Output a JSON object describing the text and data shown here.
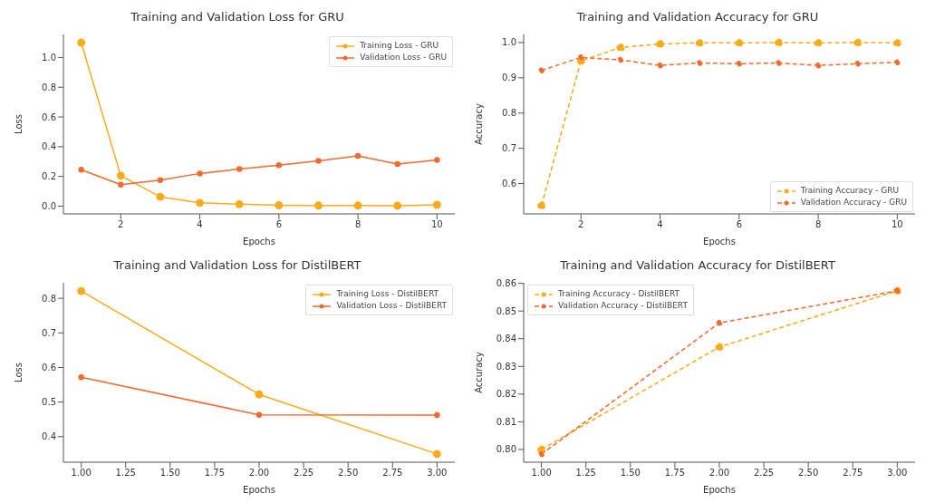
{
  "chart_data": [
    {
      "type": "line",
      "title": "Training and Validation Loss for GRU",
      "xlabel": "Epochs",
      "ylabel": "Loss",
      "x": [
        1,
        2,
        3,
        4,
        5,
        6,
        7,
        8,
        9,
        10
      ],
      "xlim": [
        0.55,
        10.45
      ],
      "xticks": [
        2,
        4,
        6,
        8,
        10
      ],
      "ylim": [
        -0.052,
        1.155
      ],
      "yticks": [
        {
          "value": 0,
          "label": "0.0"
        },
        0.2,
        0.4,
        0.6,
        0.8,
        {
          "value": 1,
          "label": "1.0"
        }
      ],
      "marker": "circle",
      "line_style": "solid",
      "grid": false,
      "legend": "top right",
      "series": [
        {
          "name": "Training Loss - GRU",
          "color": "#fbaa19",
          "values": [
            1.1,
            0.205,
            0.063,
            0.022,
            0.013,
            0.006,
            0.004,
            0.004,
            0.003,
            0.009
          ]
        },
        {
          "name": "Validation Loss - GRU",
          "color": "#f4692e",
          "values": [
            0.245,
            0.145,
            0.175,
            0.22,
            0.25,
            0.275,
            0.305,
            0.338,
            0.283,
            0.31
          ]
        }
      ]
    },
    {
      "type": "line",
      "title": "Training and Validation Accuracy for GRU",
      "xlabel": "Epochs",
      "ylabel": "Accuracy",
      "x": [
        1,
        2,
        3,
        4,
        5,
        6,
        7,
        8,
        9,
        10
      ],
      "xlim": [
        0.55,
        10.45
      ],
      "xticks": [
        2,
        4,
        6,
        8,
        10
      ],
      "ylim": [
        0.514,
        1.023
      ],
      "yticks": [
        0.6,
        0.7,
        0.8,
        0.9,
        {
          "value": 1,
          "label": "1.0"
        }
      ],
      "marker": "circle",
      "line_style": "dashed",
      "grid": false,
      "legend": "bottom right",
      "series": [
        {
          "name": "Training Accuracy - GRU",
          "color": "#fbaa19",
          "values": [
            0.538,
            0.948,
            0.986,
            0.996,
            0.999,
            0.999,
            1.0,
            0.999,
            1.0,
            0.999
          ]
        },
        {
          "name": "Validation Accuracy - GRU",
          "color": "#f4692e",
          "values": [
            0.921,
            0.958,
            0.951,
            0.935,
            0.942,
            0.94,
            0.942,
            0.935,
            0.94,
            0.944
          ]
        }
      ]
    },
    {
      "type": "line",
      "title": "Training and Validation Loss for DistilBERT",
      "xlabel": "Epochs",
      "ylabel": "Loss",
      "x": [
        1,
        2,
        3
      ],
      "xlim": [
        0.9,
        3.1
      ],
      "xticks": [
        {
          "value": 1,
          "label": "1.00"
        },
        1.25,
        {
          "value": 1.5,
          "label": "1.50"
        },
        1.75,
        {
          "value": 2,
          "label": "2.00"
        },
        2.25,
        {
          "value": 2.5,
          "label": "2.50"
        },
        2.75,
        {
          "value": 3,
          "label": "3.00"
        }
      ],
      "ylim": [
        0.326,
        0.845
      ],
      "yticks": [
        0.4,
        0.5,
        0.6,
        0.7,
        0.8
      ],
      "marker": "circle",
      "line_style": "solid",
      "grid": false,
      "legend": "top right",
      "series": [
        {
          "name": "Training Loss - DistilBERT",
          "color": "#fbaa19",
          "values": [
            0.821,
            0.522,
            0.35
          ]
        },
        {
          "name": "Validation Loss - DistilBERT",
          "color": "#f4692e",
          "values": [
            0.572,
            0.463,
            0.462
          ]
        }
      ]
    },
    {
      "type": "line",
      "title": "Training and Validation Accuracy for DistilBERT",
      "xlabel": "Epochs",
      "ylabel": "Accuracy",
      "x": [
        1,
        2,
        3
      ],
      "xlim": [
        0.9,
        3.1
      ],
      "xticks": [
        {
          "value": 1,
          "label": "1.00"
        },
        1.25,
        {
          "value": 1.5,
          "label": "1.50"
        },
        1.75,
        {
          "value": 2,
          "label": "2.00"
        },
        2.25,
        {
          "value": 2.5,
          "label": "2.50"
        },
        2.75,
        {
          "value": 3,
          "label": "3.00"
        }
      ],
      "ylim": [
        0.7954,
        0.8602
      ],
      "yticks": [
        {
          "value": 0.8,
          "label": "0.80"
        },
        0.81,
        0.82,
        0.83,
        0.84,
        0.85,
        {
          "value": 0.86,
          "label": "0.86"
        }
      ],
      "marker": "circle",
      "line_style": "dashed",
      "grid": false,
      "legend": "top left",
      "series": [
        {
          "name": "Training Accuracy - DistilBERT",
          "color": "#fbaa19",
          "values": [
            0.8,
            0.837,
            0.8573
          ]
        },
        {
          "name": "Validation Accuracy - DistilBERT",
          "color": "#f4692e",
          "values": [
            0.7983,
            0.8457,
            0.8573
          ]
        }
      ]
    }
  ]
}
